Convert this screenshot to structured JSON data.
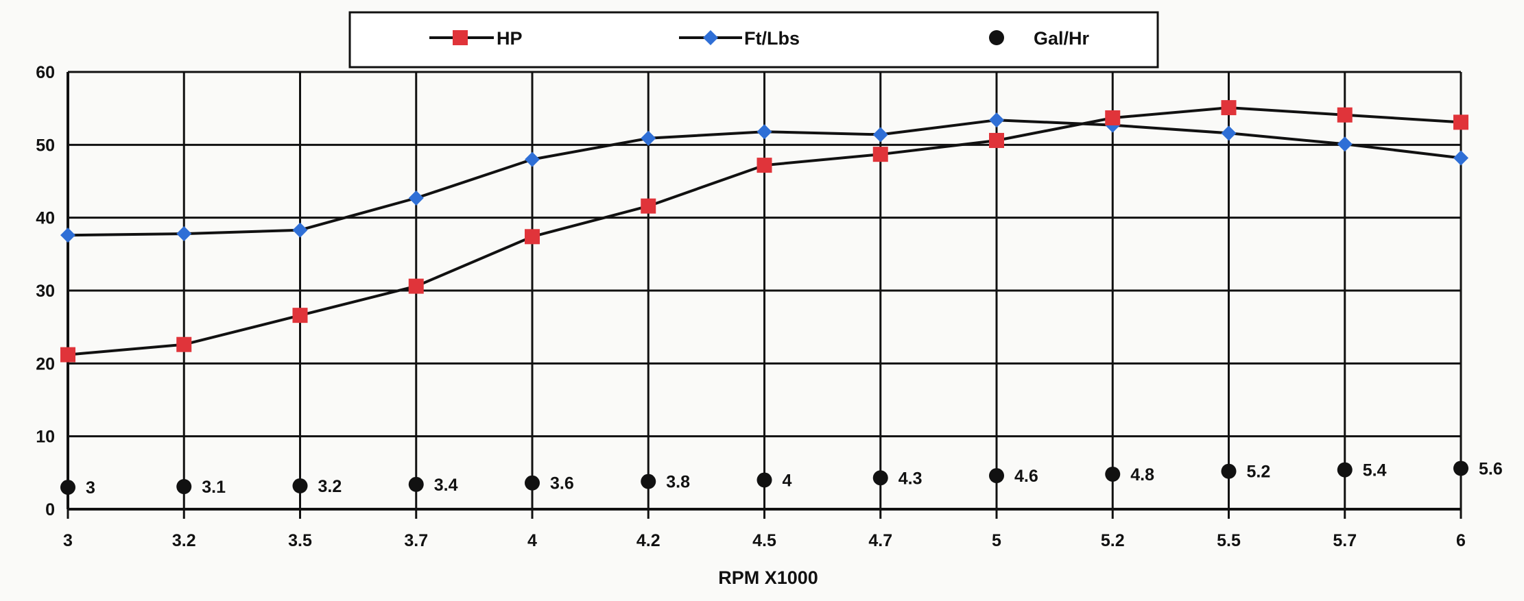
{
  "chart_data": {
    "type": "line",
    "xlabel": "RPM X1000",
    "ylabel": "",
    "categories": [
      "3",
      "3.2",
      "3.5",
      "3.7",
      "4",
      "4.2",
      "4.5",
      "4.7",
      "5",
      "5.2",
      "5.5",
      "5.7",
      "6"
    ],
    "ylim": [
      0,
      60
    ],
    "yticks": [
      "0",
      "10",
      "20",
      "30",
      "40",
      "50",
      "60"
    ],
    "grid": true,
    "legend_position": "top-center",
    "series": [
      {
        "name": "HP",
        "marker": "square",
        "color": "#e0343a",
        "values": [
          21.2,
          22.6,
          26.6,
          30.6,
          37.4,
          41.6,
          47.2,
          48.7,
          50.6,
          53.7,
          55.1,
          54.1,
          53.1
        ]
      },
      {
        "name": "Ft/Lbs",
        "marker": "diamond",
        "color": "#2f6fd6",
        "values": [
          37.6,
          37.8,
          38.3,
          42.7,
          48.0,
          50.9,
          51.8,
          51.4,
          53.4,
          52.7,
          51.6,
          50.1,
          48.2
        ]
      },
      {
        "name": "Gal/Hr",
        "marker": "circle",
        "color": "#111111",
        "values": [
          3,
          3.1,
          3.2,
          3.4,
          3.6,
          3.8,
          4,
          4.3,
          4.6,
          4.8,
          5.2,
          5.4,
          5.6
        ],
        "labels": [
          "3",
          "3.1",
          "3.2",
          "3.4",
          "3.6",
          "3.8",
          "4",
          "4.3",
          "4.6",
          "4.8",
          "5.2",
          "5.4",
          "5.6"
        ]
      }
    ]
  }
}
